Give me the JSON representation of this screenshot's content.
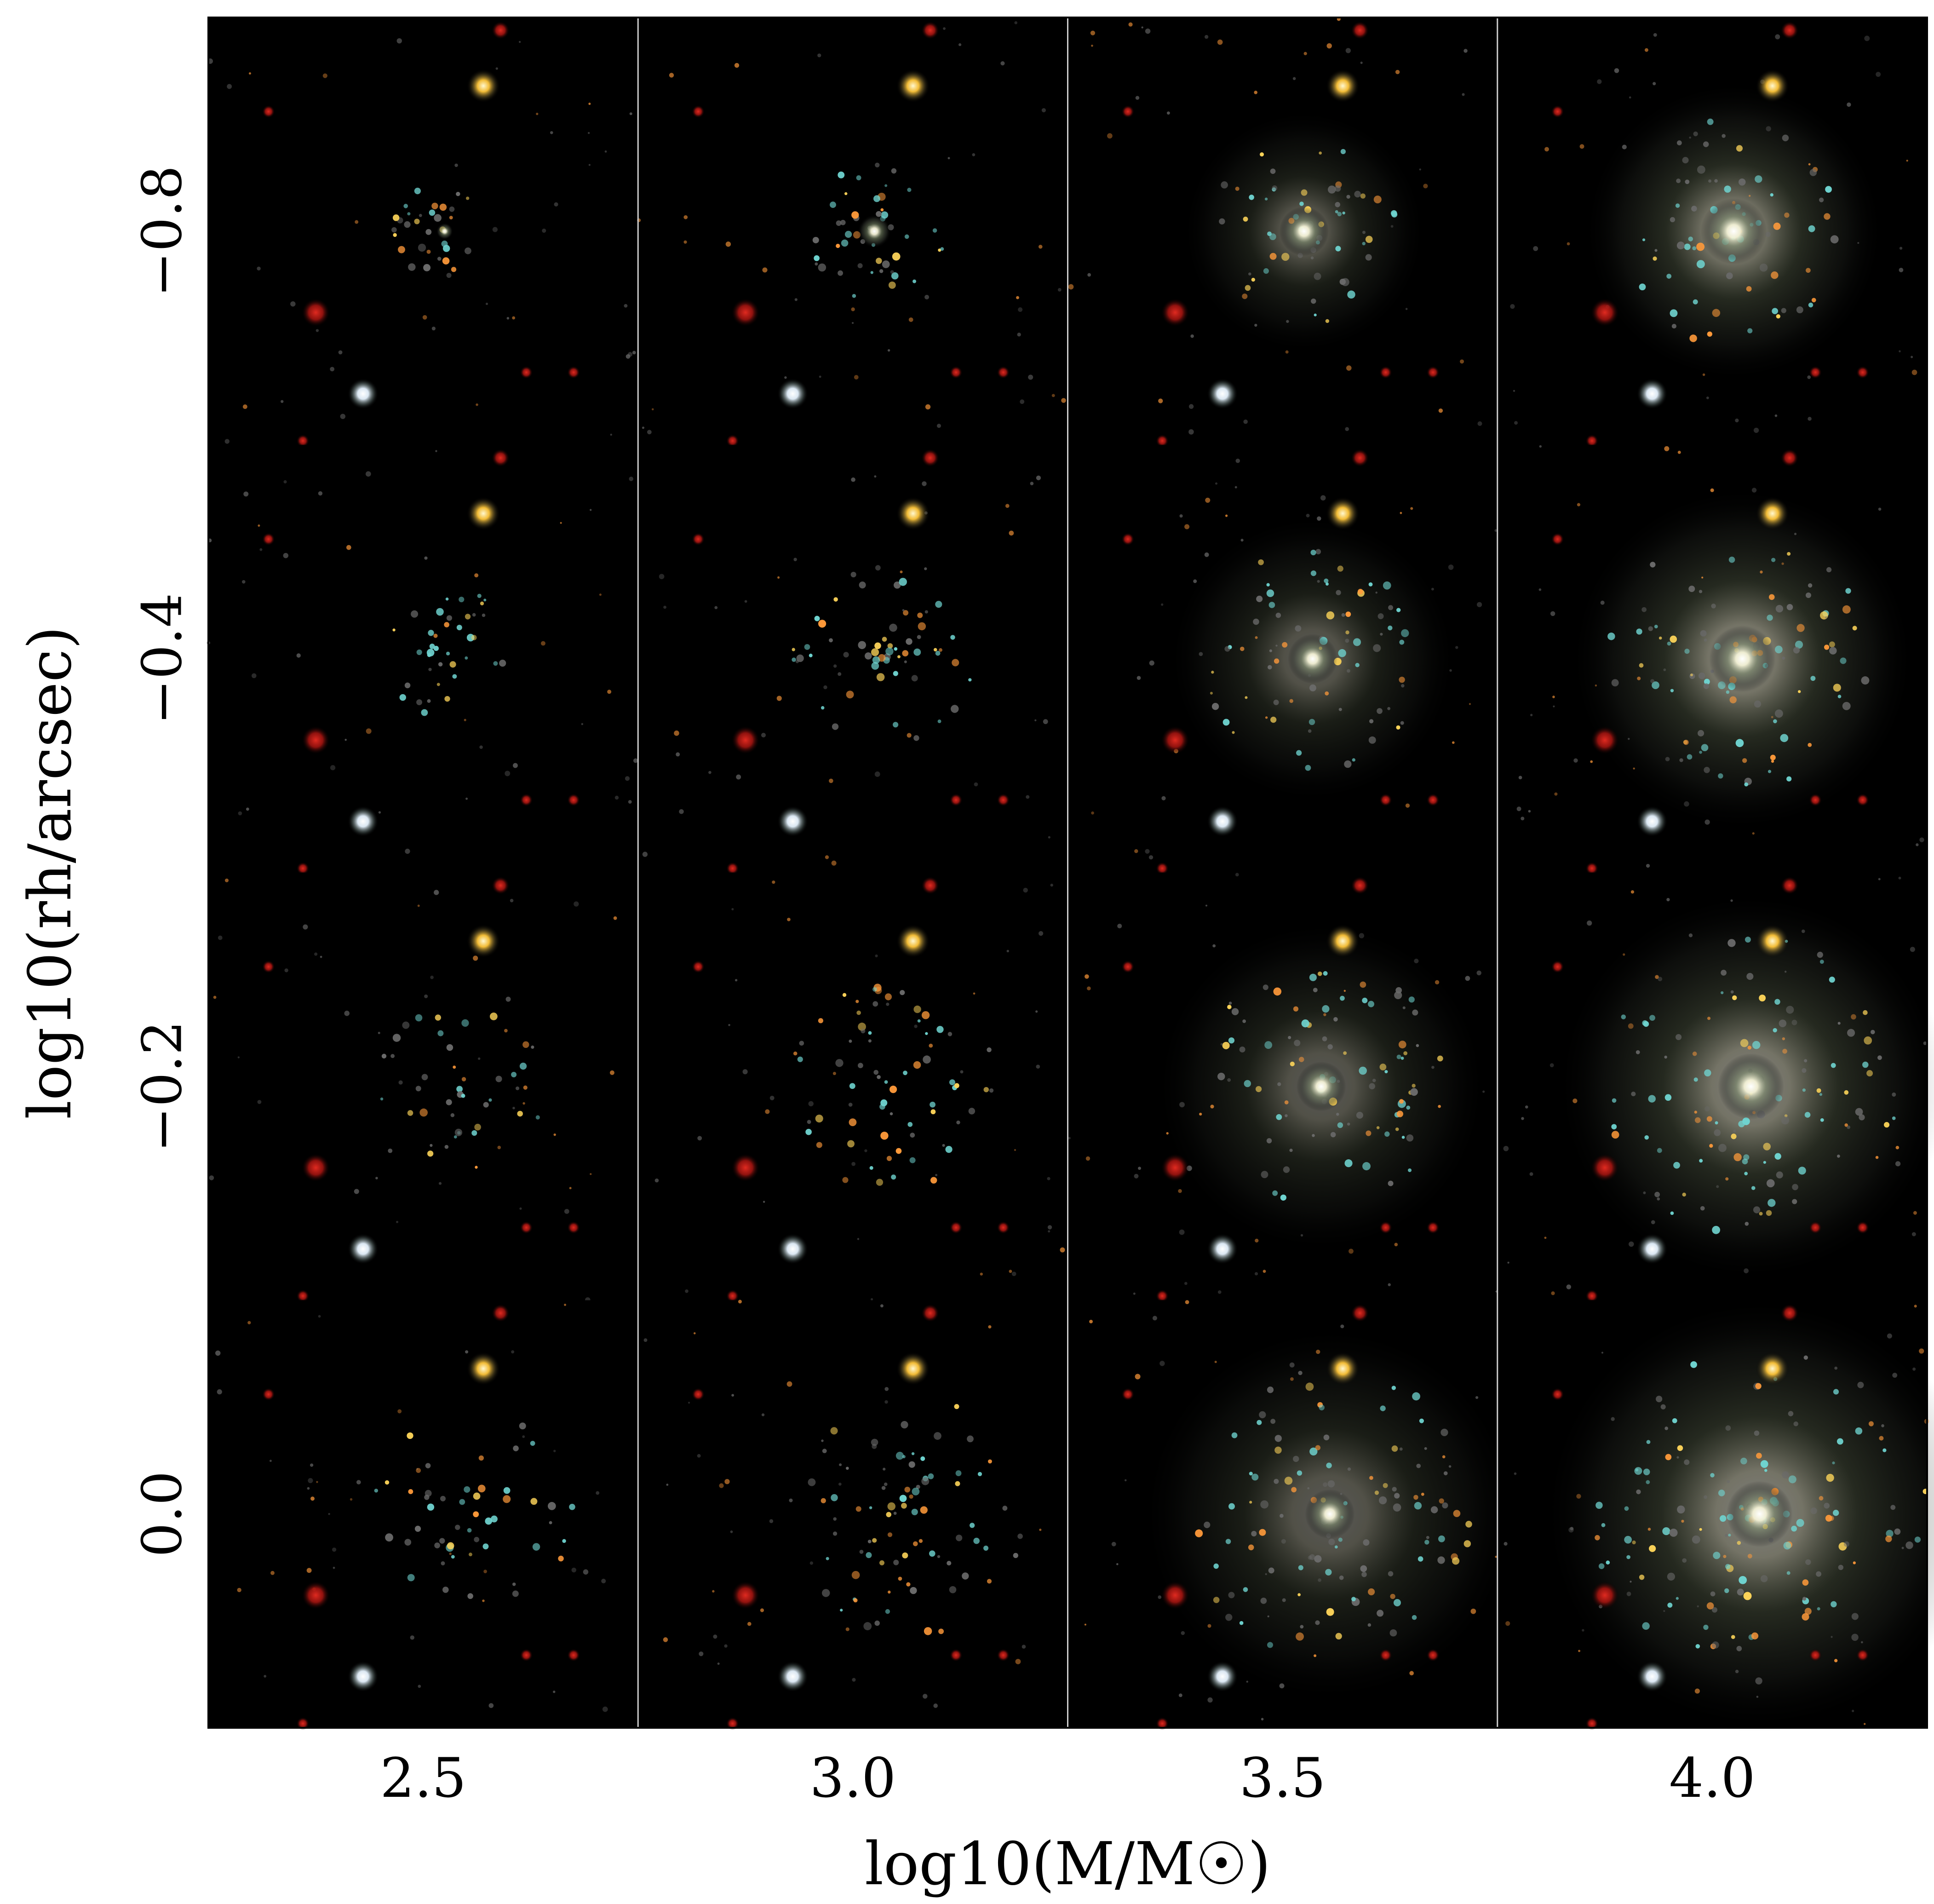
{
  "figure": {
    "x_axis": {
      "label": "log10(M/M☉)",
      "ticks": [
        "2.5",
        "3.0",
        "3.5",
        "4.0"
      ]
    },
    "y_axis": {
      "label": "log10(rh/arcsec)",
      "ticks": [
        "−0.8",
        "−0.4",
        "−0.2",
        "0.0"
      ]
    },
    "background_color": "#000000",
    "star_colors": {
      "white": "#ffffff",
      "yellow": "#ffd65a",
      "orange": "#ff9a3a",
      "red": "#c41a14",
      "cyan": "#6fd4d0",
      "gray": "#6a6a6a"
    }
  },
  "chart_data": {
    "type": "image-grid",
    "columns": [
      "2.5",
      "3.0",
      "3.5",
      "4.0"
    ],
    "rows": [
      "−0.8",
      "−0.4",
      "−0.2",
      "0.0"
    ],
    "xlabel": "log10(M/M☉)",
    "ylabel": "log10(rh/arcsec)"
  }
}
